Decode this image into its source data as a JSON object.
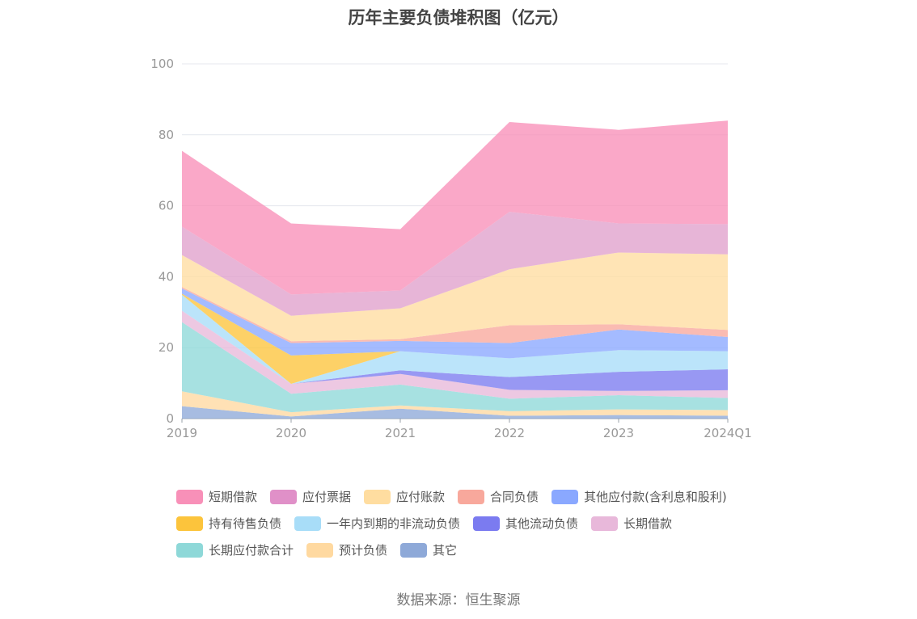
{
  "title": "历年主要负债堆积图（亿元）",
  "source": "数据来源：恒生聚源",
  "chart_data": {
    "type": "area",
    "stacked": true,
    "title": "历年主要负债堆积图（亿元）",
    "x": [
      "2019",
      "2020",
      "2021",
      "2022",
      "2023",
      "2024Q1"
    ],
    "ylim": [
      0,
      100
    ],
    "yticks": [
      0,
      20,
      40,
      60,
      80,
      100
    ],
    "grid": true,
    "legend_position": "bottom",
    "series": [
      {
        "name": "其它",
        "color": "#8EA9D8",
        "values": [
          3.5,
          0.6,
          2.8,
          0.8,
          1.0,
          0.8
        ]
      },
      {
        "name": "预计负债",
        "color": "#FFD9A0",
        "values": [
          4.2,
          1.2,
          0.9,
          1.3,
          1.6,
          1.6
        ]
      },
      {
        "name": "长期应付款合计",
        "color": "#8ED8D8",
        "values": [
          19.5,
          5.2,
          5.9,
          3.5,
          4.0,
          3.4
        ]
      },
      {
        "name": "长期借款",
        "color": "#E8B8DA",
        "values": [
          3.2,
          2.8,
          3.0,
          2.5,
          1.2,
          2.2
        ]
      },
      {
        "name": "其他流动负债",
        "color": "#7B7BF0",
        "values": [
          0.0,
          0.0,
          1.0,
          3.6,
          5.4,
          5.9
        ]
      },
      {
        "name": "一年内到期的非流动负债",
        "color": "#A8DDF8",
        "values": [
          4.5,
          0.0,
          5.4,
          5.3,
          6.1,
          5.1
        ]
      },
      {
        "name": "持有待售负债",
        "color": "#FCC43C",
        "values": [
          0.3,
          8.0,
          0.0,
          0.0,
          0.0,
          0.0
        ]
      },
      {
        "name": "其他应付款(含利息和股利)",
        "color": "#8AA8FF",
        "values": [
          1.5,
          3.5,
          2.9,
          4.3,
          5.8,
          4.0
        ]
      },
      {
        "name": "合同负债",
        "color": "#F8A89C",
        "values": [
          0.4,
          0.5,
          0.5,
          5.0,
          1.5,
          2.0
        ]
      },
      {
        "name": "应付账款",
        "color": "#FFDDA0",
        "values": [
          9.0,
          7.2,
          8.7,
          15.8,
          20.2,
          21.3
        ]
      },
      {
        "name": "应付票据",
        "color": "#E0A0CC",
        "values": [
          8.0,
          6.0,
          5.0,
          16.2,
          8.2,
          8.5
        ]
      },
      {
        "name": "短期借款",
        "color": "#F890B8",
        "values": [
          21.4,
          20.0,
          17.3,
          25.3,
          26.4,
          29.2
        ]
      }
    ]
  },
  "legend": {
    "rows": [
      [
        {
          "label": "短期借款",
          "color": "#F890B8"
        },
        {
          "label": "应付票据",
          "color": "#E090C8"
        },
        {
          "label": "应付账款",
          "color": "#FFDDA0"
        },
        {
          "label": "合同负债",
          "color": "#F8A89C"
        },
        {
          "label": "其他应付款(含利息和股利)",
          "color": "#8AA8FF"
        }
      ],
      [
        {
          "label": "持有待售负债",
          "color": "#FCC43C"
        },
        {
          "label": "一年内到期的非流动负债",
          "color": "#A8DDF8"
        },
        {
          "label": "其他流动负债",
          "color": "#7B7BF0"
        },
        {
          "label": "长期借款",
          "color": "#E8B8DA"
        }
      ],
      [
        {
          "label": "长期应付款合计",
          "color": "#8ED8D8"
        },
        {
          "label": "预计负债",
          "color": "#FFD9A0"
        },
        {
          "label": "其它",
          "color": "#8EA9D8"
        }
      ]
    ]
  }
}
